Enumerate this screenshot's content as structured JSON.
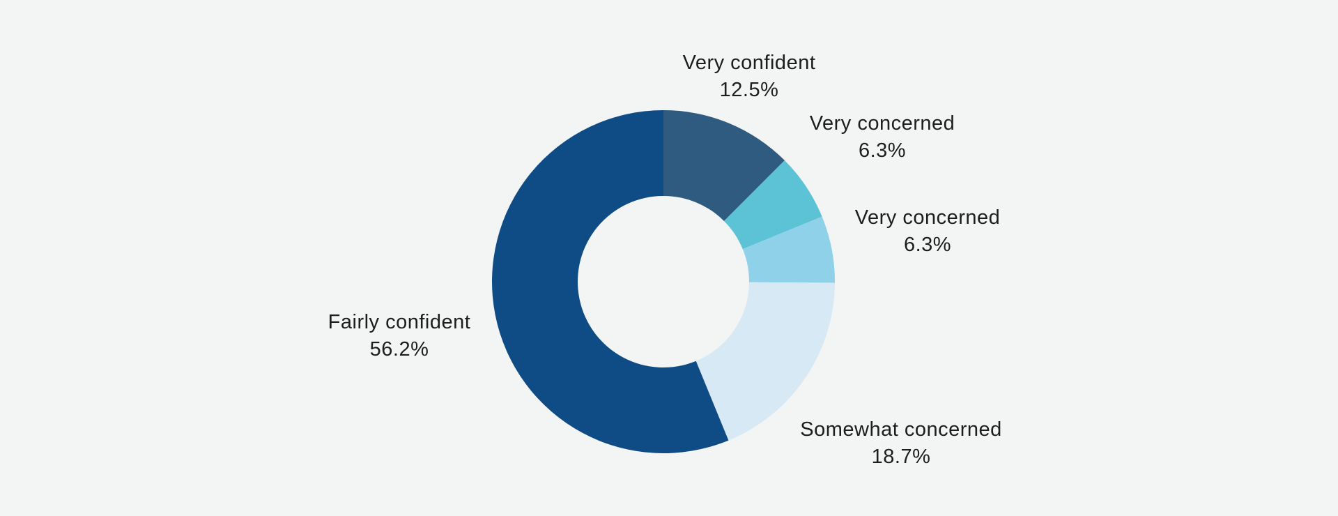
{
  "chart_data": {
    "type": "pie",
    "variant": "donut",
    "slices": [
      {
        "label": "Very confident",
        "value": 12.5,
        "display": "12.5%",
        "color": "#2e5b7f"
      },
      {
        "label": "Very concerned",
        "value": 6.3,
        "display": "6.3%",
        "color": "#5cc2d6"
      },
      {
        "label": "Very concerned",
        "value": 6.3,
        "display": "6.3%",
        "color": "#8fd1e8"
      },
      {
        "label": "Somewhat concerned",
        "value": 18.7,
        "display": "18.7%",
        "color": "#d6e9f4"
      },
      {
        "label": "Fairly confident",
        "value": 56.2,
        "display": "56.2%",
        "color": "#0f4c86"
      }
    ],
    "start_angle_deg": 0,
    "direction": "clockwise",
    "background": "#f3f4f4"
  }
}
